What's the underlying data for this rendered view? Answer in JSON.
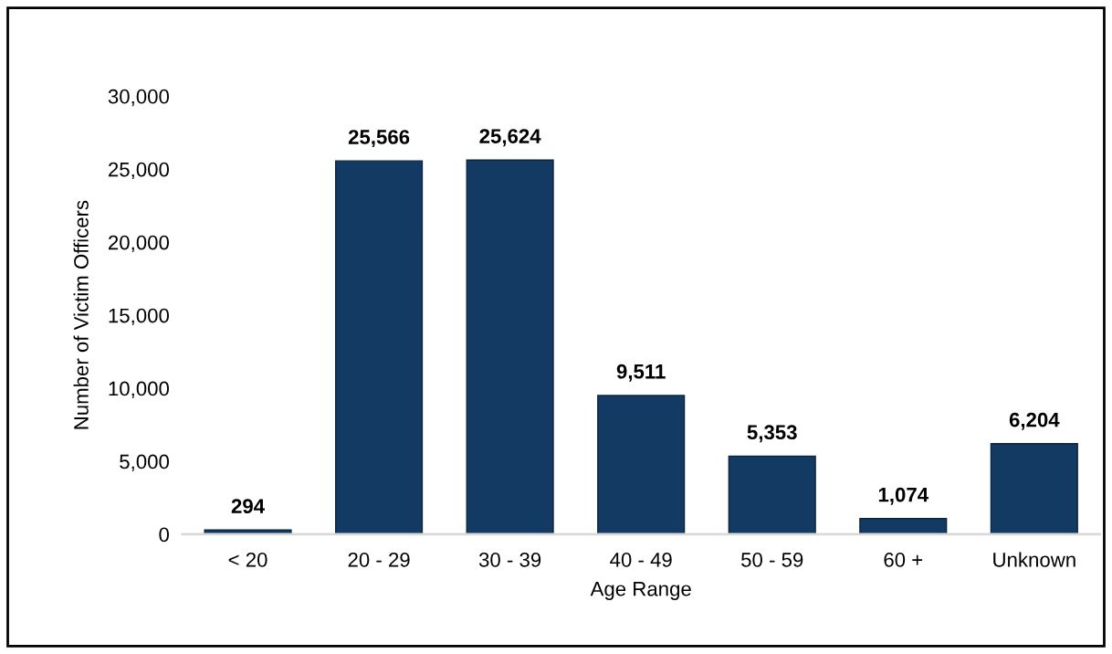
{
  "chart_data": {
    "type": "bar",
    "xlabel": "Age Range",
    "ylabel": "Number of Victim Officers",
    "categories": [
      "< 20",
      "20 - 29",
      "30 - 39",
      "40 - 49",
      "50 - 59",
      "60 +",
      "Unknown"
    ],
    "values": [
      294,
      25566,
      25624,
      9511,
      5353,
      1074,
      6204
    ],
    "value_labels": [
      "294",
      "25,566",
      "25,624",
      "9,511",
      "5,353",
      "1,074",
      "6,204"
    ],
    "color": "#133a63",
    "ylim": [
      0,
      30000
    ],
    "yticks": [
      {
        "value": 0,
        "label": "0"
      },
      {
        "value": 5000,
        "label": "5,000"
      },
      {
        "value": 10000,
        "label": "10,000"
      },
      {
        "value": 15000,
        "label": "15,000"
      },
      {
        "value": 20000,
        "label": "20,000"
      },
      {
        "value": 25000,
        "label": "25,000"
      },
      {
        "value": 30000,
        "label": "30,000"
      }
    ],
    "grid": false
  }
}
